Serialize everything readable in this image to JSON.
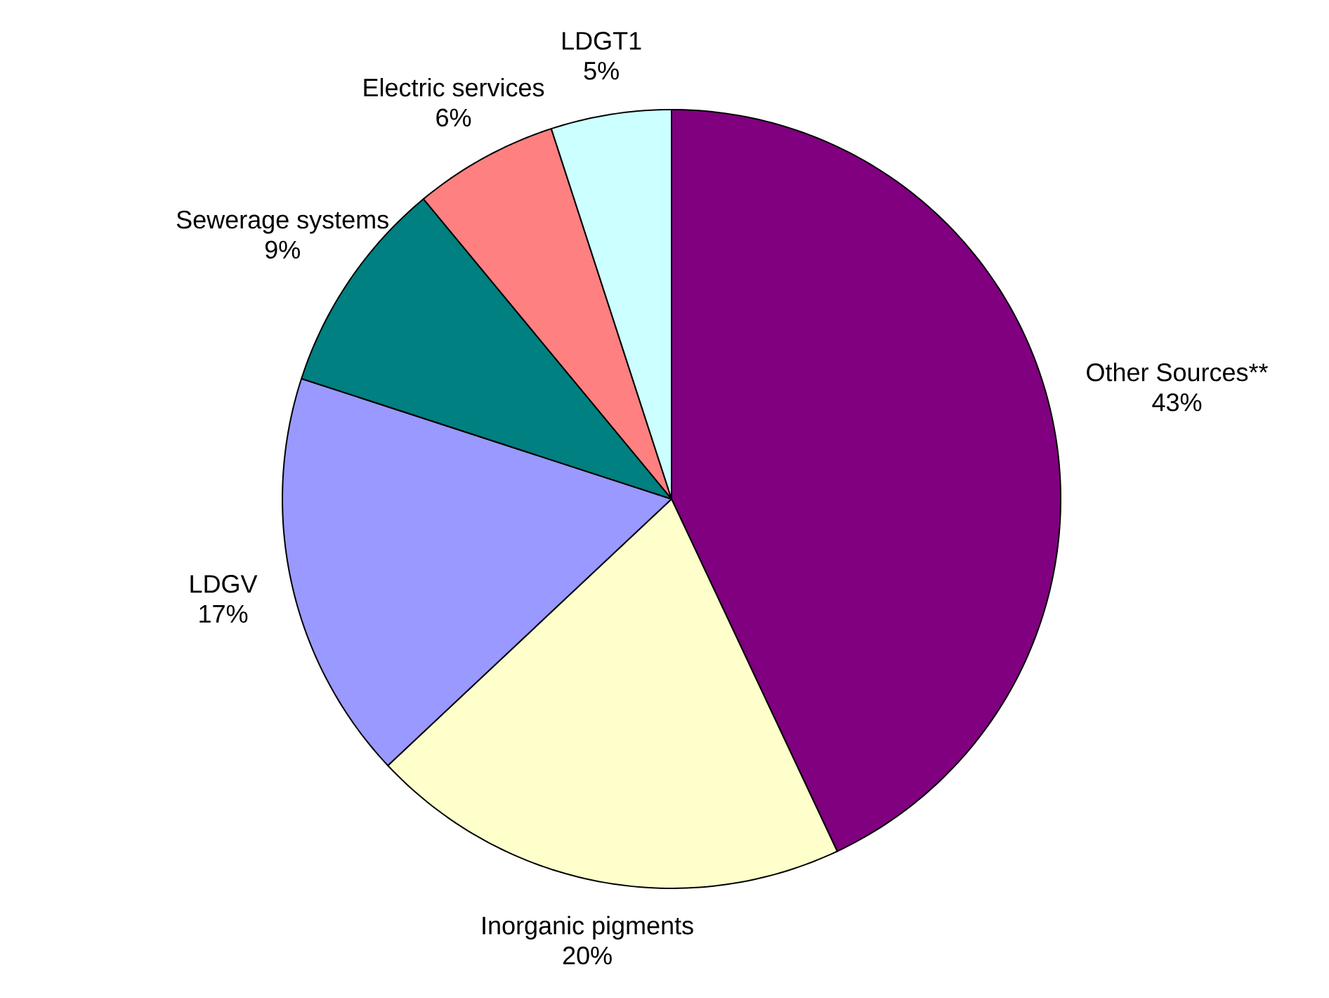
{
  "chart_data": {
    "type": "pie",
    "categories": [
      "Other Sources**",
      "Inorganic pigments",
      "LDGV",
      "Sewerage systems",
      "Electric services",
      "LDGT1"
    ],
    "values": [
      43,
      20,
      17,
      9,
      6,
      5
    ],
    "colors": [
      "#800080",
      "#ffffcc",
      "#9999ff",
      "#008080",
      "#ff8080",
      "#ccffff"
    ],
    "value_labels": [
      "43%",
      "20%",
      "17%",
      "9%",
      "6%",
      "5%"
    ]
  }
}
